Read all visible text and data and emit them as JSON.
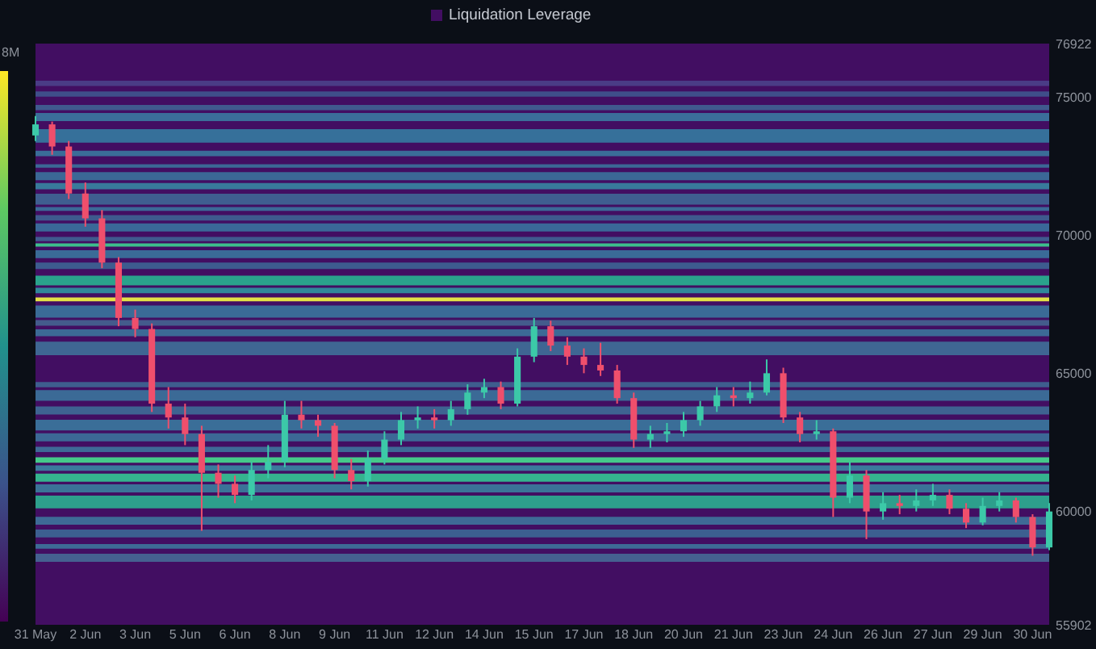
{
  "chart_data": {
    "type": "candlestick",
    "legend": "top",
    "categories": [
      "31 May",
      null,
      null,
      "2 Jun",
      null,
      null,
      "3 Jun",
      null,
      null,
      "5 Jun",
      null,
      null,
      "6 Jun",
      null,
      null,
      "8 Jun",
      null,
      null,
      "9 Jun",
      null,
      null,
      "11 Jun",
      null,
      null,
      "12 Jun",
      null,
      null,
      "14 Jun",
      null,
      null,
      "15 Jun",
      null,
      null,
      "17 Jun",
      null,
      null,
      "18 Jun",
      null,
      null,
      "20 Jun",
      null,
      null,
      "21 Jun",
      null,
      null,
      "23 Jun",
      null,
      null,
      "24 Jun",
      null,
      null,
      "26 Jun",
      null,
      null,
      "27 Jun",
      null,
      null,
      "29 Jun",
      null,
      null,
      "30 Jun",
      null
    ],
    "ohlc": [
      [
        73600,
        74300,
        73400,
        74000
      ],
      [
        74000,
        74100,
        72900,
        73200
      ],
      [
        73200,
        73400,
        71300,
        71500
      ],
      [
        71500,
        71900,
        70300,
        70600
      ],
      [
        70600,
        70900,
        68800,
        69000
      ],
      [
        69000,
        69200,
        66700,
        67000
      ],
      [
        67000,
        67300,
        66300,
        66600
      ],
      [
        66600,
        66800,
        63600,
        63900
      ],
      [
        63900,
        64500,
        63000,
        63400
      ],
      [
        63400,
        63900,
        62400,
        62800
      ],
      [
        62800,
        63100,
        59300,
        61400
      ],
      [
        61400,
        61700,
        60500,
        61000
      ],
      [
        61000,
        61300,
        60300,
        60600
      ],
      [
        60600,
        61800,
        60400,
        61500
      ],
      [
        61500,
        62400,
        61200,
        61800
      ],
      [
        61800,
        64000,
        61600,
        63500
      ],
      [
        63500,
        64000,
        63000,
        63300
      ],
      [
        63300,
        63500,
        62700,
        63100
      ],
      [
        63100,
        63200,
        61200,
        61500
      ],
      [
        61500,
        61900,
        60800,
        61100
      ],
      [
        61100,
        62200,
        60900,
        61900
      ],
      [
        61900,
        62900,
        61700,
        62600
      ],
      [
        62600,
        63600,
        62400,
        63300
      ],
      [
        63300,
        63800,
        63000,
        63400
      ],
      [
        63400,
        63700,
        63000,
        63300
      ],
      [
        63300,
        64000,
        63100,
        63700
      ],
      [
        63700,
        64600,
        63500,
        64300
      ],
      [
        64300,
        64800,
        64100,
        64500
      ],
      [
        64500,
        64700,
        63700,
        63900
      ],
      [
        63900,
        65900,
        63800,
        65600
      ],
      [
        65600,
        67000,
        65400,
        66700
      ],
      [
        66700,
        66900,
        65800,
        66000
      ],
      [
        66000,
        66300,
        65300,
        65600
      ],
      [
        65600,
        65900,
        65000,
        65300
      ],
      [
        65300,
        66100,
        64900,
        65100
      ],
      [
        65100,
        65300,
        63900,
        64100
      ],
      [
        64100,
        64300,
        62300,
        62600
      ],
      [
        62600,
        63100,
        62300,
        62800
      ],
      [
        62800,
        63200,
        62500,
        62900
      ],
      [
        62900,
        63600,
        62700,
        63300
      ],
      [
        63300,
        64000,
        63100,
        63800
      ],
      [
        63800,
        64500,
        63600,
        64200
      ],
      [
        64200,
        64500,
        63800,
        64100
      ],
      [
        64100,
        64700,
        63900,
        64300
      ],
      [
        64300,
        65500,
        64200,
        65000
      ],
      [
        65000,
        65200,
        63200,
        63400
      ],
      [
        63400,
        63600,
        62500,
        62800
      ],
      [
        62800,
        63300,
        62600,
        62900
      ],
      [
        62900,
        63000,
        59800,
        60500
      ],
      [
        60500,
        61800,
        60300,
        61300
      ],
      [
        61300,
        61500,
        59000,
        60000
      ],
      [
        60000,
        60700,
        59700,
        60300
      ],
      [
        60300,
        60600,
        59900,
        60200
      ],
      [
        60200,
        60800,
        60000,
        60400
      ],
      [
        60400,
        61000,
        60200,
        60600
      ],
      [
        60600,
        60800,
        59900,
        60100
      ],
      [
        60100,
        60300,
        59400,
        59600
      ],
      [
        59600,
        60500,
        59500,
        60200
      ],
      [
        60200,
        60700,
        60000,
        60400
      ],
      [
        60400,
        60500,
        59600,
        59800
      ],
      [
        59800,
        59900,
        58400,
        58700
      ],
      [
        58700,
        60300,
        58600,
        60000
      ]
    ],
    "colors": [
      "#3cc9a8",
      "#ef4f6c",
      "#ef4f6c",
      "#ef4f6c",
      "#ef4f6c",
      "#ef4f6c",
      "#ef4f6c",
      "#ef4f6c",
      "#ef4f6c",
      "#ef4f6c",
      "#ef4f6c",
      "#ef4f6c",
      "#ef4f6c",
      "#3cc9a8",
      "#3cc9a8",
      "#3cc9a8",
      "#ef4f6c",
      "#ef4f6c",
      "#ef4f6c",
      "#ef4f6c",
      "#3cc9a8",
      "#3cc9a8",
      "#3cc9a8",
      "#3cc9a8",
      "#ef4f6c",
      "#3cc9a8",
      "#3cc9a8",
      "#3cc9a8",
      "#ef4f6c",
      "#3cc9a8",
      "#3cc9a8",
      "#ef4f6c",
      "#ef4f6c",
      "#ef4f6c",
      "#ef4f6c",
      "#ef4f6c",
      "#ef4f6c",
      "#3cc9a8",
      "#3cc9a8",
      "#3cc9a8",
      "#3cc9a8",
      "#3cc9a8",
      "#ef4f6c",
      "#3cc9a8",
      "#3cc9a8",
      "#ef4f6c",
      "#ef4f6c",
      "#3cc9a8",
      "#ef4f6c",
      "#3cc9a8",
      "#ef4f6c",
      "#3cc9a8",
      "#ef4f6c",
      "#3cc9a8",
      "#3cc9a8",
      "#ef4f6c",
      "#ef4f6c",
      "#3cc9a8",
      "#3cc9a8",
      "#ef4f6c",
      "#ef4f6c",
      "#3cc9a8"
    ],
    "ylim": [
      55902,
      76922
    ],
    "yticks": [
      55902,
      60000,
      65000,
      70000,
      75000,
      76922
    ],
    "clabel": "8M",
    "bands": [
      {
        "axis": "y",
        "from": 55902,
        "to": 76922,
        "label": "Liquidation Leverage",
        "color": "#420e62"
      },
      {
        "axis": "y",
        "from": 75390,
        "to": 75580,
        "color": "#4a3c86"
      },
      {
        "axis": "y",
        "from": 75000,
        "to": 75190,
        "color": "#3f4e8a"
      },
      {
        "axis": "y",
        "from": 74510,
        "to": 74700,
        "color": "#405a8e"
      },
      {
        "axis": "y",
        "from": 74120,
        "to": 74410,
        "color": "#3b6e9a"
      },
      {
        "axis": "y",
        "from": 73340,
        "to": 73830,
        "color": "#36709a"
      },
      {
        "axis": "y",
        "from": 72850,
        "to": 73050,
        "color": "#3a6d98"
      },
      {
        "axis": "y",
        "from": 72430,
        "to": 72560,
        "color": "#3b6896"
      },
      {
        "axis": "y",
        "from": 71980,
        "to": 72270,
        "color": "#3b6896"
      },
      {
        "axis": "y",
        "from": 71650,
        "to": 71880,
        "color": "#387a9b"
      },
      {
        "axis": "y",
        "from": 71100,
        "to": 71490,
        "color": "#3f5e90"
      },
      {
        "axis": "y",
        "from": 70870,
        "to": 71010,
        "color": "#3b6997"
      },
      {
        "axis": "y",
        "from": 70520,
        "to": 70720,
        "color": "#3e5a8e"
      },
      {
        "axis": "y",
        "from": 70130,
        "to": 70420,
        "color": "#3a6898"
      },
      {
        "axis": "y",
        "from": 69780,
        "to": 69930,
        "color": "#3f5a8e"
      },
      {
        "axis": "y",
        "from": 69580,
        "to": 69700,
        "color": "#3cbf8c"
      },
      {
        "axis": "y",
        "from": 69160,
        "to": 69450,
        "color": "#3a6b97"
      },
      {
        "axis": "y",
        "from": 68770,
        "to": 69000,
        "color": "#3d5c8f"
      },
      {
        "axis": "y",
        "from": 68180,
        "to": 68530,
        "color": "#2aa28c"
      },
      {
        "axis": "y",
        "from": 67890,
        "to": 68090,
        "color": "#30889a"
      },
      {
        "axis": "y",
        "from": 67600,
        "to": 67740,
        "color": "#e3e046"
      },
      {
        "axis": "y",
        "from": 67010,
        "to": 67450,
        "color": "#3a6b97"
      },
      {
        "axis": "y",
        "from": 66720,
        "to": 66920,
        "color": "#445b8c"
      },
      {
        "axis": "y",
        "from": 66340,
        "to": 66590,
        "color": "#3c6a96"
      },
      {
        "axis": "y",
        "from": 65650,
        "to": 66140,
        "color": "#3f6693"
      },
      {
        "axis": "y",
        "from": 64490,
        "to": 64680,
        "color": "#3e5d8e"
      },
      {
        "axis": "y",
        "from": 64000,
        "to": 64390,
        "color": "#3b6a96"
      },
      {
        "axis": "y",
        "from": 63510,
        "to": 63800,
        "color": "#3e6391"
      },
      {
        "axis": "y",
        "from": 62930,
        "to": 63320,
        "color": "#3a6e98"
      },
      {
        "axis": "y",
        "from": 62540,
        "to": 62830,
        "color": "#3c6896"
      },
      {
        "axis": "y",
        "from": 62150,
        "to": 62340,
        "color": "#3e6a96"
      },
      {
        "axis": "y",
        "from": 61760,
        "to": 61960,
        "color": "#45c98a"
      },
      {
        "axis": "y",
        "from": 61470,
        "to": 61670,
        "color": "#3b7a9c"
      },
      {
        "axis": "y",
        "from": 61080,
        "to": 61370,
        "color": "#35b38e"
      },
      {
        "axis": "y",
        "from": 60690,
        "to": 60980,
        "color": "#3b7398"
      },
      {
        "axis": "y",
        "from": 60110,
        "to": 60570,
        "color": "#2d9f8c"
      },
      {
        "axis": "y",
        "from": 59520,
        "to": 59810,
        "color": "#3e6a96"
      },
      {
        "axis": "y",
        "from": 59060,
        "to": 59350,
        "color": "#3c5f90"
      },
      {
        "axis": "y",
        "from": 58650,
        "to": 58820,
        "color": "#3d6b96"
      },
      {
        "axis": "y",
        "from": 58180,
        "to": 58470,
        "color": "#456090"
      }
    ]
  }
}
